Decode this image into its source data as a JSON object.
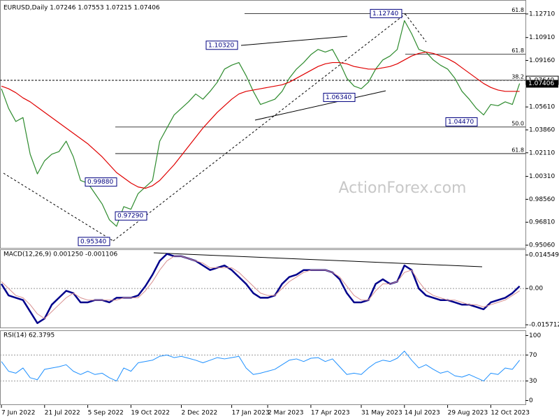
{
  "chart_data": [
    {
      "type": "line",
      "title": "EURUSD,Daily  1.07246 1.07553 1.07215 1.07406",
      "watermark": "ActionForex.com",
      "categories": [
        "7 Jun 2022",
        null,
        null,
        null,
        null,
        null,
        "21 Jul 2022",
        null,
        null,
        null,
        null,
        null,
        "5 Sep 2022",
        null,
        null,
        null,
        null,
        null,
        "19 Oct 2022",
        null,
        null,
        null,
        null,
        null,
        null,
        "2 Dec 2022",
        null,
        null,
        null,
        null,
        null,
        null,
        "17 Jan 2023",
        null,
        null,
        null,
        null,
        "2 Mar 2023",
        null,
        null,
        null,
        null,
        null,
        "17 Apr 2023",
        null,
        null,
        null,
        null,
        null,
        null,
        "31 May 2023",
        null,
        null,
        null,
        null,
        null,
        "14 Jul 2023",
        null,
        null,
        null,
        null,
        null,
        "29 Aug 2023",
        null,
        null,
        null,
        null,
        null,
        "12 Oct 2023",
        null,
        null,
        null,
        null
      ],
      "series": [
        {
          "color": "#2e8b2e",
          "values": [
            1.07,
            1.055,
            1.045,
            1.048,
            1.02,
            1.005,
            1.015,
            1.02,
            1.022,
            1.03,
            1.018,
            1.0,
            0.998,
            0.99,
            0.982,
            0.97,
            0.965,
            0.98,
            0.978,
            0.99,
            0.995,
            1.0,
            1.03,
            1.04,
            1.05,
            1.055,
            1.06,
            1.066,
            1.062,
            1.068,
            1.075,
            1.085,
            1.088,
            1.09,
            1.08,
            1.068,
            1.058,
            1.06,
            1.062,
            1.068,
            1.078,
            1.085,
            1.09,
            1.096,
            1.1,
            1.098,
            1.1,
            1.09,
            1.078,
            1.072,
            1.07,
            1.075,
            1.085,
            1.092,
            1.095,
            1.1,
            1.122,
            1.112,
            1.1,
            1.098,
            1.092,
            1.088,
            1.085,
            1.078,
            1.068,
            1.062,
            1.055,
            1.05,
            1.058,
            1.057,
            1.06,
            1.058,
            1.074
          ]
        },
        {
          "color": "#e00000",
          "values": [
            1.072,
            1.07,
            1.067,
            1.063,
            1.06,
            1.056,
            1.052,
            1.048,
            1.044,
            1.04,
            1.036,
            1.032,
            1.028,
            1.023,
            1.018,
            1.012,
            1.006,
            1.002,
            0.998,
            0.995,
            0.994,
            0.996,
            1.0,
            1.006,
            1.012,
            1.019,
            1.026,
            1.033,
            1.04,
            1.046,
            1.052,
            1.057,
            1.062,
            1.066,
            1.068,
            1.069,
            1.07,
            1.071,
            1.072,
            1.073,
            1.075,
            1.078,
            1.081,
            1.084,
            1.087,
            1.089,
            1.09,
            1.09,
            1.089,
            1.087,
            1.086,
            1.085,
            1.085,
            1.086,
            1.087,
            1.089,
            1.092,
            1.095,
            1.097,
            1.098,
            1.097,
            1.095,
            1.093,
            1.09,
            1.086,
            1.082,
            1.078,
            1.074,
            1.071,
            1.069,
            1.068,
            1.068,
            1.068
          ]
        }
      ],
      "ylim": [
        0.9485,
        1.1356
      ],
      "yticks": [
        {
          "value": 1.1271,
          "label": "1.12710"
        },
        {
          "value": 1.1091,
          "label": "1.10910"
        },
        {
          "value": 1.0916,
          "label": "1.09160"
        },
        {
          "value": 1.0561,
          "label": "1.05610"
        },
        {
          "value": 1.0386,
          "label": "1.03860"
        },
        {
          "value": 1.0211,
          "label": "1.02110"
        },
        {
          "value": 1.0031,
          "label": "1.00310"
        },
        {
          "value": 0.9856,
          "label": "0.98560"
        },
        {
          "value": 0.9681,
          "label": "0.96810"
        },
        {
          "value": 0.9506,
          "label": "0.95060"
        }
      ],
      "hline": {
        "value": 1.0764,
        "label": "1.07640"
      },
      "last_price": {
        "value": 1.07406,
        "label": "1.07406"
      },
      "annotations": [
        {
          "value": 1.1274,
          "label": "1.12740"
        },
        {
          "value": 1.1032,
          "label": "1.10320"
        },
        {
          "value": 1.0634,
          "label": "1.06340"
        },
        {
          "value": 1.0447,
          "label": "1.04470"
        },
        {
          "value": 0.9534,
          "label": "0.95340"
        },
        {
          "value": 0.9729,
          "label": "0.97290"
        },
        {
          "value": 0.9988,
          "label": "0.99880"
        }
      ],
      "fib_levels": [
        {
          "value": 1.1274,
          "label": "61.8"
        },
        {
          "value": 1.0963,
          "label": "61.8"
        },
        {
          "value": 1.0765,
          "label": "38.2"
        },
        {
          "value": 1.0408,
          "label": "50.0"
        },
        {
          "value": 1.0205,
          "label": "61.8"
        }
      ]
    },
    {
      "type": "line",
      "title": "MACD(12,26,9) 0.001250 -0.001106",
      "series": [
        {
          "color": "#00008b",
          "values": [
            0.002,
            -0.003,
            -0.004,
            -0.005,
            -0.01,
            -0.015,
            -0.013,
            -0.007,
            -0.004,
            -0.001,
            -0.002,
            -0.006,
            -0.006,
            -0.005,
            -0.005,
            -0.006,
            -0.004,
            -0.004,
            -0.004,
            -0.003,
            0.001,
            0.006,
            0.012,
            0.015,
            0.014,
            0.014,
            0.013,
            0.012,
            0.01,
            0.008,
            0.009,
            0.01,
            0.008,
            0.005,
            0.002,
            -0.002,
            -0.004,
            -0.004,
            -0.003,
            0.002,
            0.005,
            0.006,
            0.008,
            0.008,
            0.008,
            0.008,
            0.007,
            0.004,
            -0.002,
            -0.006,
            -0.006,
            -0.005,
            0.002,
            0.004,
            0.002,
            0.003,
            0.01,
            0.008,
            0.0,
            -0.003,
            -0.004,
            -0.005,
            -0.005,
            -0.006,
            -0.007,
            -0.007,
            -0.008,
            -0.009,
            -0.006,
            -0.005,
            -0.004,
            -0.002,
            0.001
          ]
        },
        {
          "color": "#d89090",
          "values": [
            0.003,
            0.0,
            -0.003,
            -0.004,
            -0.007,
            -0.011,
            -0.013,
            -0.01,
            -0.007,
            -0.004,
            -0.002,
            -0.004,
            -0.005,
            -0.005,
            -0.005,
            -0.005,
            -0.005,
            -0.004,
            -0.004,
            -0.004,
            -0.001,
            0.003,
            0.008,
            0.012,
            0.014,
            0.014,
            0.013,
            0.012,
            0.011,
            0.009,
            0.009,
            0.009,
            0.009,
            0.007,
            0.004,
            0.001,
            -0.002,
            -0.003,
            -0.003,
            0.0,
            0.003,
            0.005,
            0.007,
            0.008,
            0.008,
            0.008,
            0.007,
            0.005,
            0.001,
            -0.003,
            -0.005,
            -0.005,
            -0.001,
            0.002,
            0.002,
            0.003,
            0.007,
            0.008,
            0.003,
            -0.001,
            -0.003,
            -0.004,
            -0.005,
            -0.005,
            -0.006,
            -0.007,
            -0.007,
            -0.008,
            -0.007,
            -0.006,
            -0.005,
            -0.003,
            -0.001
          ]
        }
      ],
      "ylim": [
        -0.0172,
        0.017
      ],
      "yticks": [
        0.014549,
        {
          "value": 0,
          "label": "0.00"
        },
        -0.015712
      ],
      "zero_line": true
    },
    {
      "type": "line",
      "title": "RSI(14) 62.3795",
      "series": [
        {
          "color": "#1e90ff",
          "values": [
            60,
            45,
            42,
            50,
            35,
            32,
            48,
            50,
            52,
            55,
            45,
            40,
            45,
            40,
            42,
            35,
            30,
            50,
            45,
            58,
            60,
            62,
            68,
            70,
            66,
            68,
            65,
            62,
            58,
            62,
            66,
            64,
            66,
            68,
            50,
            40,
            42,
            45,
            48,
            55,
            62,
            64,
            60,
            65,
            66,
            60,
            64,
            52,
            40,
            42,
            40,
            50,
            58,
            62,
            60,
            65,
            76,
            62,
            50,
            55,
            48,
            42,
            45,
            38,
            36,
            40,
            35,
            30,
            42,
            40,
            50,
            48,
            62
          ]
        }
      ],
      "ylim": [
        -7,
        108
      ],
      "yticks": [
        100,
        70,
        30,
        0
      ],
      "levels": [
        70,
        30
      ]
    }
  ]
}
